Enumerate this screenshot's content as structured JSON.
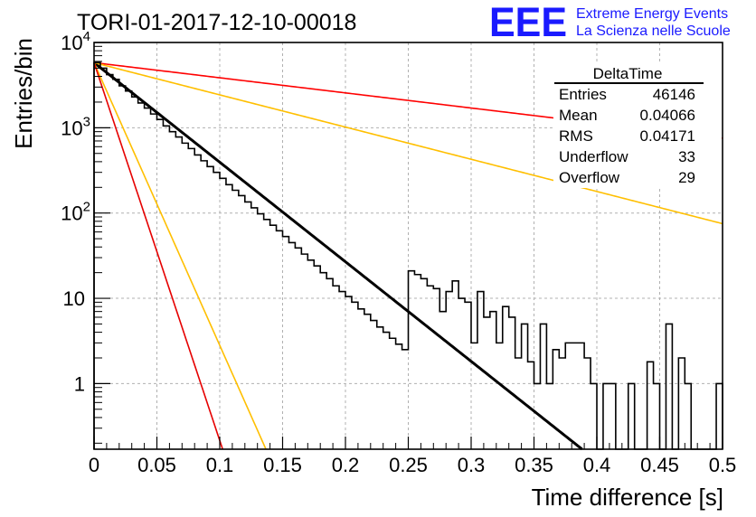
{
  "title": "TORI-01-2017-12-10-00018",
  "logo": {
    "mark": "EEE",
    "line1": "Extreme Energy Events",
    "line2": "La Scienza nelle Scuole",
    "color": "#1a1aff"
  },
  "stats_box": {
    "name": "DeltaTime",
    "rows": [
      {
        "label": "Entries",
        "value": "46146"
      },
      {
        "label": "Mean",
        "value": "0.04066"
      },
      {
        "label": "RMS",
        "value": "0.04171"
      },
      {
        "label": "Underflow",
        "value": "33"
      },
      {
        "label": "Overflow",
        "value": "29"
      }
    ]
  },
  "chart_data": {
    "type": "line",
    "xlabel": "Time difference [s]",
    "ylabel": "Entries/bin",
    "xlim": [
      0,
      0.5
    ],
    "ylim": [
      0.17,
      10000
    ],
    "yscale": "log",
    "grid": true,
    "x_ticks": [
      "0",
      "0.05",
      "0.1",
      "0.15",
      "0.2",
      "0.25",
      "0.3",
      "0.35",
      "0.4",
      "0.45",
      "0.5"
    ],
    "y_ticks": [
      {
        "value": 1,
        "base": "1",
        "exp": ""
      },
      {
        "value": 10,
        "base": "10",
        "exp": ""
      },
      {
        "value": 100,
        "base": "10",
        "exp": "2"
      },
      {
        "value": 1000,
        "base": "10",
        "exp": "3"
      },
      {
        "value": 10000,
        "base": "10",
        "exp": "4"
      }
    ],
    "histogram": {
      "color": "#000000",
      "bin_width": 0.005,
      "values": [
        5800,
        5000,
        4200,
        3700,
        3100,
        2700,
        2300,
        1950,
        1700,
        1450,
        1250,
        1050,
        900,
        780,
        660,
        570,
        480,
        410,
        350,
        300,
        255,
        215,
        185,
        160,
        135,
        115,
        98,
        84,
        72,
        62,
        53,
        45,
        39,
        33,
        28,
        24,
        20,
        17,
        14,
        12,
        10.5,
        9,
        7.5,
        6.5,
        5.5,
        4.6,
        4,
        3.4,
        2.9,
        2.5,
        21,
        19,
        17,
        14,
        13,
        7,
        12,
        16,
        10,
        9,
        3,
        12,
        6,
        7,
        3,
        8,
        6,
        2,
        5,
        1.8,
        1,
        5,
        1,
        2.5,
        2,
        3,
        3,
        3,
        2,
        1,
        0.1,
        1,
        1,
        0.1,
        0.1,
        1,
        0.1,
        0.1,
        1.8,
        1,
        0.1,
        5,
        0.1,
        2,
        1,
        0.1,
        0.1,
        0.1,
        0.1,
        1
      ]
    },
    "curves": [
      {
        "color": "#000000",
        "width": 3,
        "A": 5800,
        "tau": 0.0372
      },
      {
        "color": "#ff0000",
        "width": 1.6,
        "A": 5800,
        "tau": 0.245
      },
      {
        "color": "#ffbf00",
        "width": 1.6,
        "A": 5800,
        "tau": 0.115
      },
      {
        "color": "#ffbf00",
        "width": 1.6,
        "A": 5800,
        "tau": 0.0131
      },
      {
        "color": "#e60000",
        "width": 1.6,
        "A": 5800,
        "tau": 0.0098
      }
    ]
  }
}
